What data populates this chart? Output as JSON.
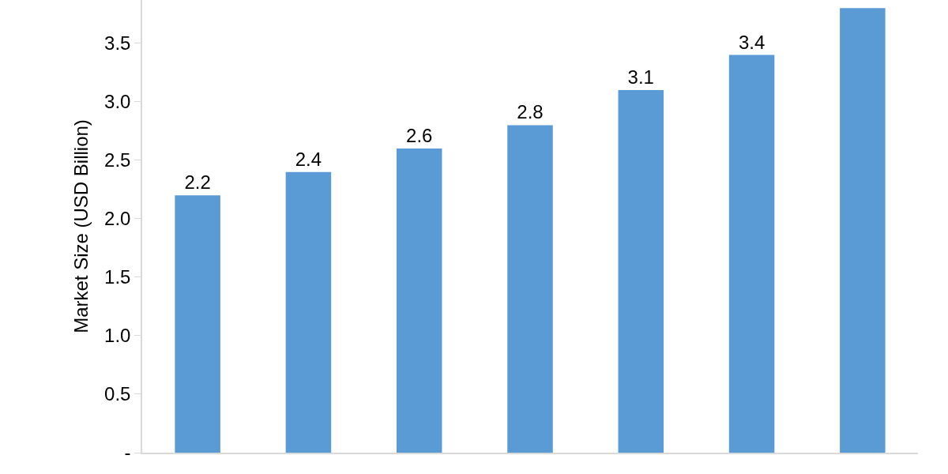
{
  "chart_data": {
    "type": "bar",
    "ylabel": "Market Size (USD Billion)",
    "categories": [
      null,
      null,
      null,
      null,
      null,
      null,
      null
    ],
    "values": [
      2.2,
      2.4,
      2.6,
      2.8,
      3.1,
      3.4,
      3.8
    ],
    "value_labels": [
      "2.2",
      "2.4",
      "2.6",
      "2.8",
      "3.1",
      "3.4",
      null
    ],
    "color": "#5b9bd5",
    "ylim": [
      0,
      3.87
    ],
    "yticks": [
      {
        "value": 0,
        "label": "-"
      },
      {
        "value": 0.5,
        "label": "0.5"
      },
      {
        "value": 1,
        "label": "1.0"
      },
      {
        "value": 1.5,
        "label": "1.5"
      },
      {
        "value": 2,
        "label": "2.0"
      },
      {
        "value": 2.5,
        "label": "2.5"
      },
      {
        "value": 3,
        "label": "3.0"
      },
      {
        "value": 3.5,
        "label": "3.5"
      }
    ]
  }
}
